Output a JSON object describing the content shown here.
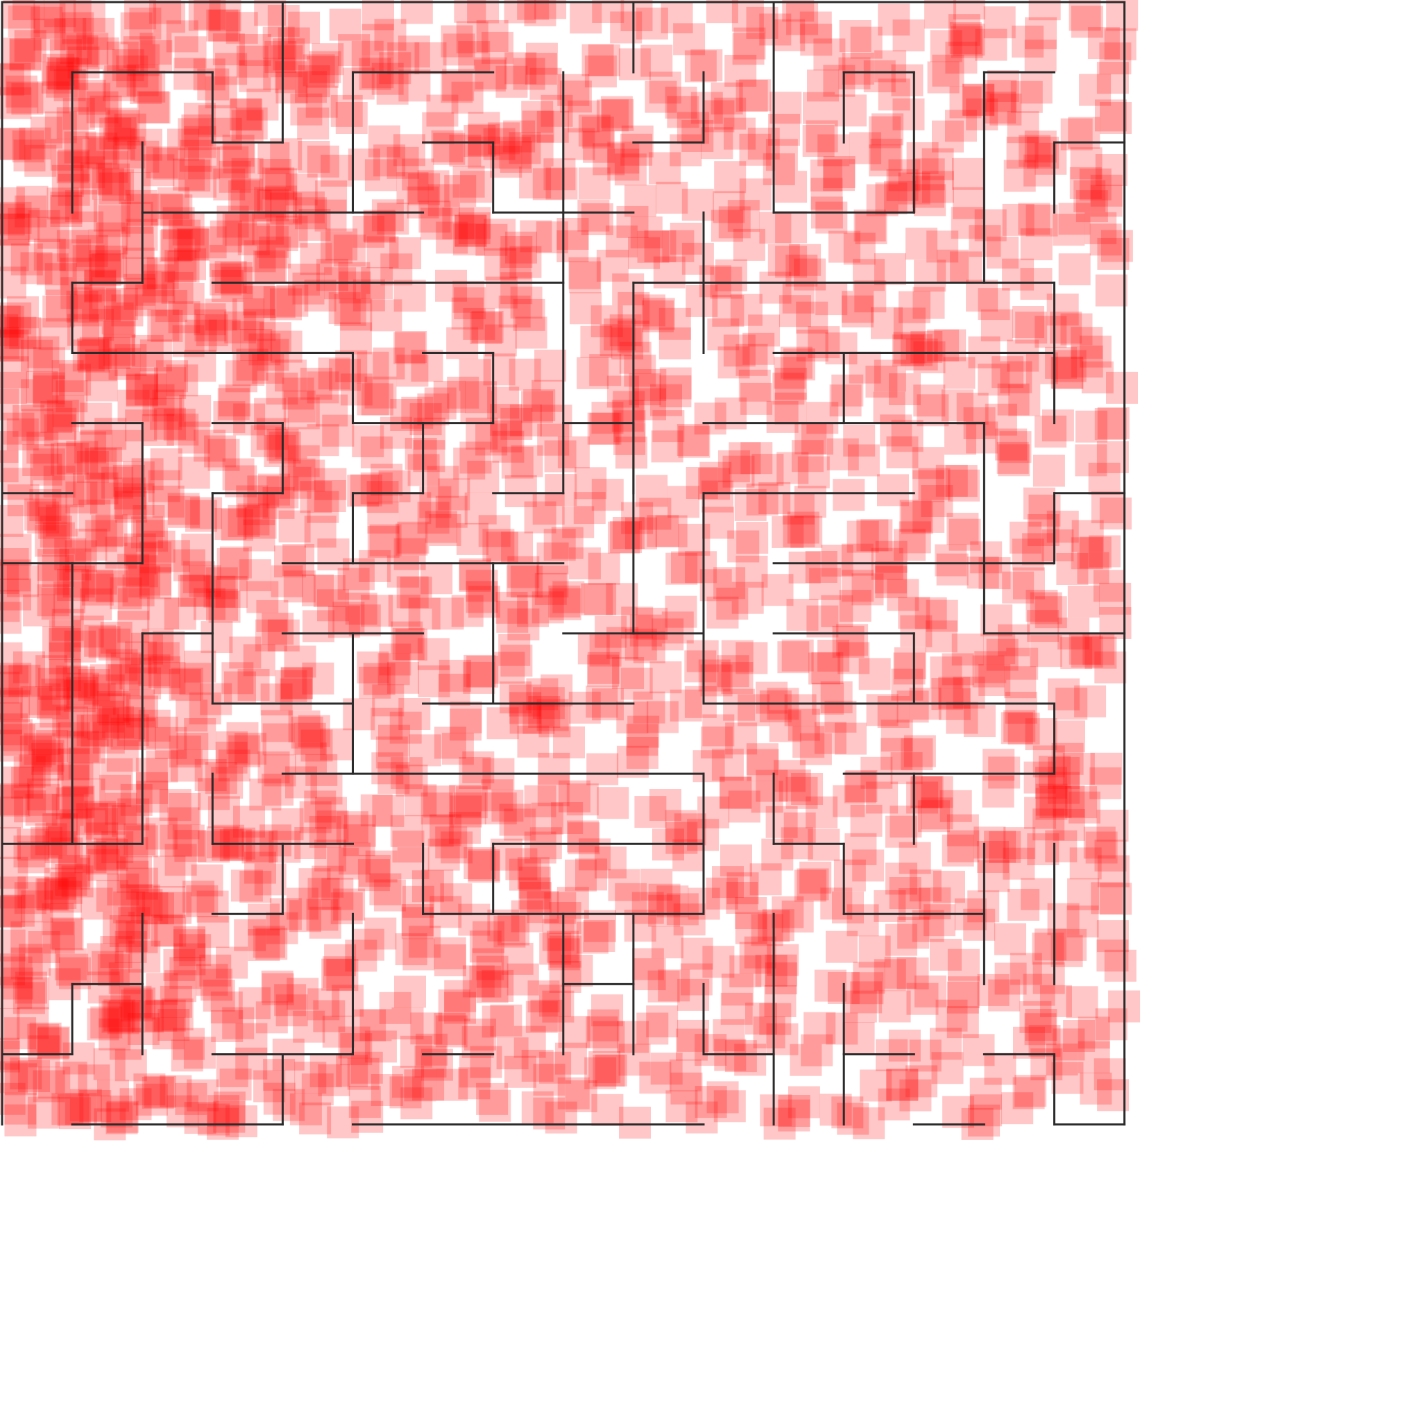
{
  "maze": {
    "rows": 16,
    "cols": 16,
    "wall_color": "#2b2b2b",
    "visit_color": "#ff0000",
    "visit_marker_opacity": 0.22,
    "h_walls": [
      [
        0,
        0,
        4
      ],
      [
        0,
        4,
        9
      ],
      [
        0,
        9,
        11
      ],
      [
        0,
        11,
        16
      ],
      [
        1,
        1,
        3
      ],
      [
        1,
        5,
        7
      ],
      [
        1,
        12,
        13
      ],
      [
        1,
        14,
        15
      ],
      [
        2,
        3,
        4
      ],
      [
        2,
        6,
        7
      ],
      [
        2,
        9,
        10
      ],
      [
        2,
        15,
        16
      ],
      [
        3,
        2,
        6
      ],
      [
        3,
        7,
        9
      ],
      [
        3,
        11,
        13
      ],
      [
        4,
        1,
        2
      ],
      [
        4,
        3,
        8
      ],
      [
        4,
        9,
        10
      ],
      [
        4,
        10,
        15
      ],
      [
        5,
        1,
        5
      ],
      [
        5,
        6,
        7
      ],
      [
        5,
        11,
        15
      ],
      [
        6,
        1,
        2
      ],
      [
        6,
        3,
        4
      ],
      [
        6,
        5,
        7
      ],
      [
        6,
        8,
        9
      ],
      [
        6,
        10,
        14
      ],
      [
        7,
        0,
        1
      ],
      [
        7,
        3,
        4
      ],
      [
        7,
        5,
        6
      ],
      [
        7,
        7,
        8
      ],
      [
        7,
        10,
        13
      ],
      [
        7,
        15,
        16
      ],
      [
        8,
        0,
        2
      ],
      [
        8,
        4,
        8
      ],
      [
        8,
        11,
        15
      ],
      [
        9,
        2,
        3
      ],
      [
        9,
        4,
        6
      ],
      [
        9,
        8,
        10
      ],
      [
        9,
        11,
        13
      ],
      [
        9,
        14,
        16
      ],
      [
        10,
        3,
        5
      ],
      [
        10,
        6,
        9
      ],
      [
        10,
        10,
        15
      ],
      [
        11,
        4,
        10
      ],
      [
        11,
        12,
        15
      ],
      [
        12,
        0,
        2
      ],
      [
        12,
        3,
        5
      ],
      [
        12,
        7,
        10
      ],
      [
        12,
        11,
        12
      ],
      [
        13,
        3,
        4
      ],
      [
        13,
        6,
        10
      ],
      [
        13,
        12,
        14
      ],
      [
        14,
        1,
        2
      ],
      [
        14,
        8,
        9
      ],
      [
        15,
        0,
        1
      ],
      [
        15,
        3,
        5
      ],
      [
        15,
        6,
        7
      ],
      [
        15,
        10,
        11
      ],
      [
        15,
        12,
        13
      ],
      [
        15,
        14,
        15
      ],
      [
        16,
        1,
        4
      ],
      [
        16,
        5,
        10
      ],
      [
        16,
        13,
        14
      ],
      [
        16,
        15,
        16
      ]
    ],
    "v_walls": [
      [
        0,
        0,
        16
      ],
      [
        16,
        0,
        16
      ],
      [
        4,
        0,
        2
      ],
      [
        9,
        0,
        1
      ],
      [
        11,
        0,
        3
      ],
      [
        1,
        1,
        3
      ],
      [
        3,
        1,
        2
      ],
      [
        5,
        1,
        3
      ],
      [
        8,
        1,
        3
      ],
      [
        10,
        1,
        2
      ],
      [
        12,
        1,
        2
      ],
      [
        13,
        1,
        3
      ],
      [
        14,
        1,
        4
      ],
      [
        2,
        2,
        4
      ],
      [
        7,
        2,
        3
      ],
      [
        15,
        2,
        3
      ],
      [
        8,
        3,
        6
      ],
      [
        10,
        3,
        4
      ],
      [
        1,
        4,
        5
      ],
      [
        9,
        4,
        9
      ],
      [
        10,
        4,
        5
      ],
      [
        15,
        4,
        6
      ],
      [
        5,
        5,
        6
      ],
      [
        7,
        5,
        6
      ],
      [
        12,
        5,
        6
      ],
      [
        2,
        6,
        8
      ],
      [
        4,
        6,
        7
      ],
      [
        6,
        6,
        7
      ],
      [
        8,
        6,
        7
      ],
      [
        9,
        6,
        7
      ],
      [
        14,
        6,
        9
      ],
      [
        3,
        7,
        10
      ],
      [
        5,
        7,
        8
      ],
      [
        10,
        7,
        10
      ],
      [
        15,
        7,
        8
      ],
      [
        1,
        8,
        12
      ],
      [
        7,
        8,
        10
      ],
      [
        2,
        9,
        12
      ],
      [
        5,
        9,
        11
      ],
      [
        13,
        9,
        10
      ],
      [
        15,
        10,
        11
      ],
      [
        3,
        11,
        12
      ],
      [
        10,
        11,
        13
      ],
      [
        11,
        11,
        12
      ],
      [
        13,
        11,
        12
      ],
      [
        4,
        12,
        13
      ],
      [
        6,
        12,
        13
      ],
      [
        7,
        12,
        13
      ],
      [
        12,
        12,
        13
      ],
      [
        14,
        12,
        14
      ],
      [
        15,
        12,
        14
      ],
      [
        2,
        13,
        14
      ],
      [
        5,
        13,
        15
      ],
      [
        8,
        13,
        15
      ],
      [
        9,
        13,
        15
      ],
      [
        11,
        13,
        16
      ],
      [
        1,
        14,
        15
      ],
      [
        2,
        14,
        15
      ],
      [
        10,
        14,
        15
      ],
      [
        12,
        14,
        15
      ],
      [
        4,
        15,
        16
      ],
      [
        12,
        15,
        16
      ],
      [
        15,
        15,
        16
      ]
    ]
  }
}
